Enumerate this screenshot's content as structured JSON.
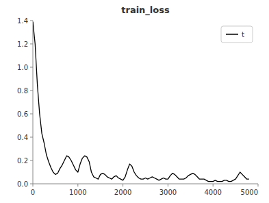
{
  "chart_data": {
    "type": "line",
    "title": "train_loss",
    "x": [
      0,
      50,
      100,
      150,
      200,
      250,
      300,
      350,
      400,
      450,
      500,
      550,
      600,
      650,
      700,
      750,
      800,
      850,
      900,
      950,
      1000,
      1050,
      1100,
      1150,
      1200,
      1250,
      1300,
      1350,
      1400,
      1450,
      1500,
      1550,
      1600,
      1650,
      1700,
      1750,
      1800,
      1850,
      1900,
      1950,
      2000,
      2050,
      2100,
      2150,
      2200,
      2250,
      2300,
      2350,
      2400,
      2450,
      2500,
      2550,
      2600,
      2650,
      2700,
      2750,
      2800,
      2850,
      2900,
      2950,
      3000,
      3050,
      3100,
      3150,
      3200,
      3250,
      3300,
      3350,
      3400,
      3450,
      3500,
      3550,
      3600,
      3650,
      3700,
      3750,
      3800,
      3850,
      3900,
      3950,
      4000,
      4050,
      4100,
      4150,
      4200,
      4250,
      4300,
      4350,
      4400,
      4450,
      4500,
      4550,
      4600,
      4650,
      4700,
      4750,
      4800
    ],
    "series": [
      {
        "name": "t",
        "color": "#000000",
        "values": [
          1.39,
          1.2,
          0.85,
          0.6,
          0.43,
          0.35,
          0.25,
          0.19,
          0.14,
          0.1,
          0.08,
          0.09,
          0.13,
          0.16,
          0.2,
          0.24,
          0.23,
          0.2,
          0.16,
          0.12,
          0.1,
          0.17,
          0.22,
          0.24,
          0.23,
          0.19,
          0.1,
          0.06,
          0.05,
          0.04,
          0.08,
          0.09,
          0.08,
          0.06,
          0.05,
          0.04,
          0.06,
          0.07,
          0.05,
          0.04,
          0.03,
          0.06,
          0.12,
          0.17,
          0.15,
          0.1,
          0.07,
          0.05,
          0.04,
          0.04,
          0.05,
          0.04,
          0.05,
          0.06,
          0.05,
          0.04,
          0.03,
          0.04,
          0.05,
          0.04,
          0.04,
          0.07,
          0.09,
          0.08,
          0.06,
          0.04,
          0.04,
          0.04,
          0.05,
          0.07,
          0.08,
          0.09,
          0.08,
          0.06,
          0.04,
          0.04,
          0.04,
          0.03,
          0.02,
          0.02,
          0.02,
          0.03,
          0.02,
          0.02,
          0.02,
          0.03,
          0.03,
          0.02,
          0.02,
          0.03,
          0.04,
          0.07,
          0.1,
          0.08,
          0.06,
          0.04,
          0.04
        ]
      }
    ],
    "xlim": [
      0,
      5000
    ],
    "xticks": [
      0,
      1000,
      2000,
      3000,
      4000,
      5000
    ],
    "ylim": [
      0.0,
      1.4
    ],
    "yticks": [
      {
        "value": 0.0,
        "label": "0.0"
      },
      0.2,
      0.4,
      0.6,
      0.8,
      {
        "value": 1.0,
        "label": "1.0"
      },
      1.2,
      1.4
    ],
    "legend": "upper right"
  }
}
